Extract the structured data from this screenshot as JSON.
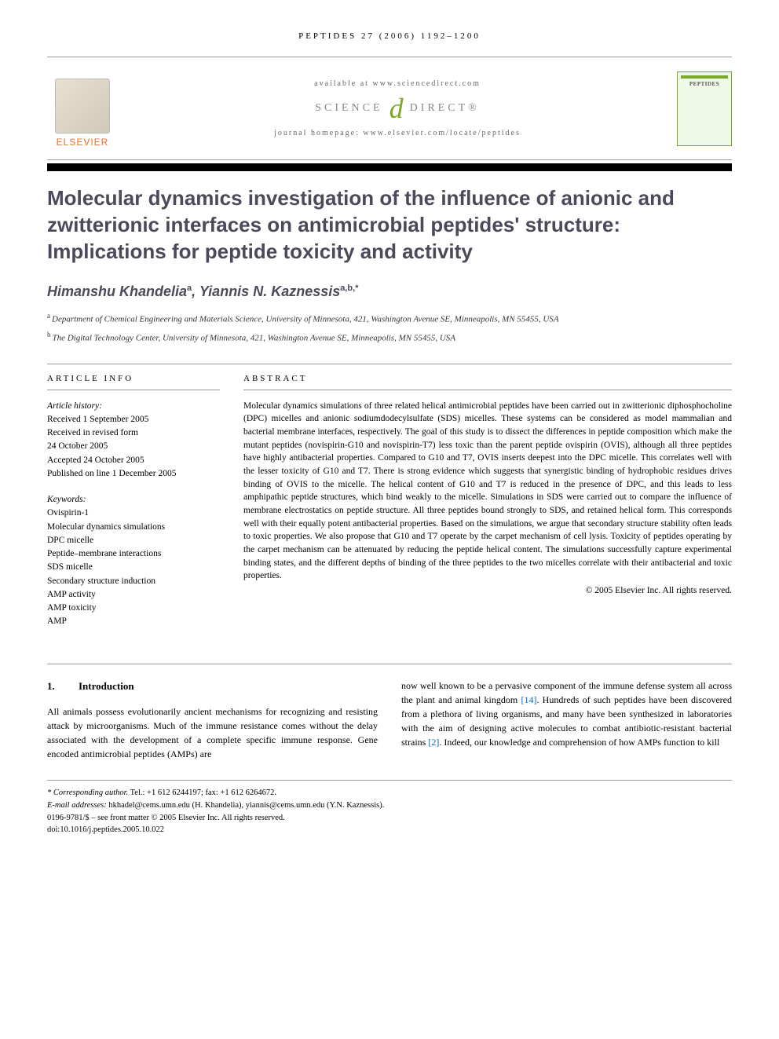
{
  "running_head": "PEPTIDES 27 (2006) 1192–1200",
  "banner": {
    "available_text": "available at www.sciencedirect.com",
    "sd_left": "SCIENCE",
    "sd_right": "DIRECT®",
    "homepage_text": "journal homepage: www.elsevier.com/locate/peptides",
    "elsevier_label": "ELSEVIER",
    "cover_title": "PEPTIDES"
  },
  "article": {
    "title": "Molecular dynamics investigation of the influence of anionic and zwitterionic interfaces on antimicrobial peptides' structure: Implications for peptide toxicity and activity",
    "authors_html": "Himanshu Khandelia",
    "author1": "Himanshu Khandelia",
    "author1_aff": "a",
    "author2": "Yiannis N. Kaznessis",
    "author2_aff": "a,b,*",
    "affiliation_a": "Department of Chemical Engineering and Materials Science, University of Minnesota, 421, Washington Avenue SE, Minneapolis, MN 55455, USA",
    "affiliation_b": "The Digital Technology Center, University of Minnesota, 421, Washington Avenue SE, Minneapolis, MN 55455, USA"
  },
  "info": {
    "header": "ARTICLE INFO",
    "history_label": "Article history:",
    "received": "Received 1 September 2005",
    "revised1": "Received in revised form",
    "revised2": "24 October 2005",
    "accepted": "Accepted 24 October 2005",
    "published": "Published on line 1 December 2005",
    "keywords_label": "Keywords:",
    "keywords": [
      "Ovispirin-1",
      "Molecular dynamics simulations",
      "DPC micelle",
      "Peptide–membrane interactions",
      "SDS micelle",
      "Secondary structure induction",
      "AMP activity",
      "AMP toxicity",
      "AMP"
    ]
  },
  "abstract": {
    "header": "ABSTRACT",
    "text": "Molecular dynamics simulations of three related helical antimicrobial peptides have been carried out in zwitterionic diphosphocholine (DPC) micelles and anionic sodiumdodecylsulfate (SDS) micelles. These systems can be considered as model mammalian and bacterial membrane interfaces, respectively. The goal of this study is to dissect the differences in peptide composition which make the mutant peptides (novispirin-G10 and novispirin-T7) less toxic than the parent peptide ovispirin (OVIS), although all three peptides have highly antibacterial properties. Compared to G10 and T7, OVIS inserts deepest into the DPC micelle. This correlates well with the lesser toxicity of G10 and T7. There is strong evidence which suggests that synergistic binding of hydrophobic residues drives binding of OVIS to the micelle. The helical content of G10 and T7 is reduced in the presence of DPC, and this leads to less amphipathic peptide structures, which bind weakly to the micelle. Simulations in SDS were carried out to compare the influence of membrane electrostatics on peptide structure. All three peptides bound strongly to SDS, and retained helical form. This corresponds well with their equally potent antibacterial properties. Based on the simulations, we argue that secondary structure stability often leads to toxic properties. We also propose that G10 and T7 operate by the carpet mechanism of cell lysis. Toxicity of peptides operating by the carpet mechanism can be attenuated by reducing the peptide helical content. The simulations successfully capture experimental binding states, and the different depths of binding of the three peptides to the two micelles correlate with their antibacterial and toxic properties.",
    "copyright": "© 2005 Elsevier Inc. All rights reserved."
  },
  "body": {
    "section_num": "1.",
    "section_title": "Introduction",
    "col1": "All animals possess evolutionarily ancient mechanisms for recognizing and resisting attack by microorganisms. Much of the immune resistance comes without the delay associated with the development of a complete specific immune response. Gene encoded antimicrobial peptides (AMPs) are",
    "col2_a": "now well known to be a pervasive component of the immune defense system all across the plant and animal kingdom ",
    "col2_ref1": "[14]",
    "col2_b": ". Hundreds of such peptides have been discovered from a plethora of living organisms, and many have been synthesized in laboratories with the aim of designing active molecules to combat antibiotic-resistant bacterial strains ",
    "col2_ref2": "[2]",
    "col2_c": ". Indeed, our knowledge and comprehension of how AMPs function to kill"
  },
  "footer": {
    "corr_label": "* Corresponding author.",
    "corr_contact": " Tel.: +1 612 6244197; fax: +1 612 6264672.",
    "email_label": "E-mail addresses:",
    "email1": " hkhadel@cems.umn.edu (H. Khandelia), yiannis@cems.umn.edu (Y.N. Kaznessis).",
    "issn": "0196-9781/$ – see front matter © 2005 Elsevier Inc. All rights reserved.",
    "doi": "doi:10.1016/j.peptides.2005.10.022"
  },
  "colors": {
    "elsevier_orange": "#e8702a",
    "sd_green": "#7ba828",
    "title_gray": "#4a4a5a",
    "link_blue": "#0066cc"
  }
}
